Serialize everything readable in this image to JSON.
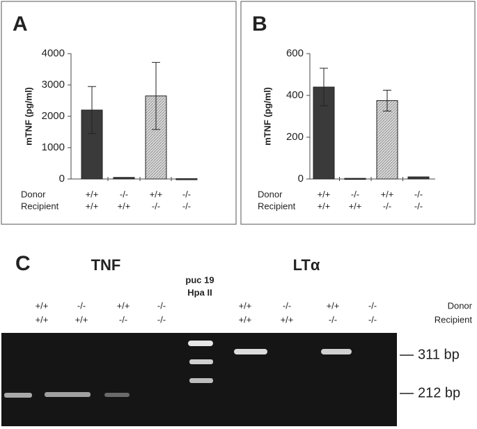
{
  "chart_data": [
    {
      "type": "bar",
      "panel_label": "A",
      "y_label": "mTNF (pg/ml)",
      "category_label": "Donor",
      "categories": [
        "+/+",
        "-/-",
        "+/+",
        "-/-"
      ],
      "secondary_category_label": "Recipient",
      "secondary_categories": [
        "+/+",
        "+/+",
        "-/-",
        "-/-"
      ],
      "values": [
        2200,
        50,
        2650,
        10
      ],
      "errors": [
        750,
        0,
        1070,
        0
      ],
      "colors": [
        "#3a3a3a",
        "#3a3a3a",
        "#c9c9c9",
        "#3a3a3a"
      ],
      "ylim": [
        0,
        4000
      ],
      "yticks": [
        0,
        1000,
        2000,
        3000,
        4000
      ]
    },
    {
      "type": "bar",
      "panel_label": "B",
      "y_label": "mTNF (pg/ml)",
      "category_label": "Donor",
      "categories": [
        "+/+",
        "-/-",
        "+/+",
        "-/-"
      ],
      "secondary_category_label": "Recipient",
      "secondary_categories": [
        "+/+",
        "+/+",
        "-/-",
        "-/-"
      ],
      "values": [
        440,
        3,
        375,
        10
      ],
      "errors": [
        90,
        0,
        50,
        0
      ],
      "colors": [
        "#3a3a3a",
        "#3a3a3a",
        "#c9c9c9",
        "#3a3a3a"
      ],
      "ylim": [
        0,
        600
      ],
      "yticks": [
        0,
        200,
        400,
        600
      ]
    }
  ],
  "gel": {
    "panel_label": "C",
    "group_labels": [
      "TNF",
      "LTα"
    ],
    "marker_label": [
      "puc 19",
      "Hpa II"
    ],
    "donor": [
      "+/+",
      "-/-",
      "+/+",
      "-/-",
      "+/+",
      "-/-",
      "+/+",
      "-/-"
    ],
    "recipient": [
      "+/+",
      "+/+",
      "-/-",
      "-/-",
      "+/+",
      "+/+",
      "-/-",
      "-/-"
    ],
    "row_labels": [
      "Donor",
      "Recipient"
    ],
    "size_labels": [
      "311 bp",
      "212 bp"
    ]
  }
}
